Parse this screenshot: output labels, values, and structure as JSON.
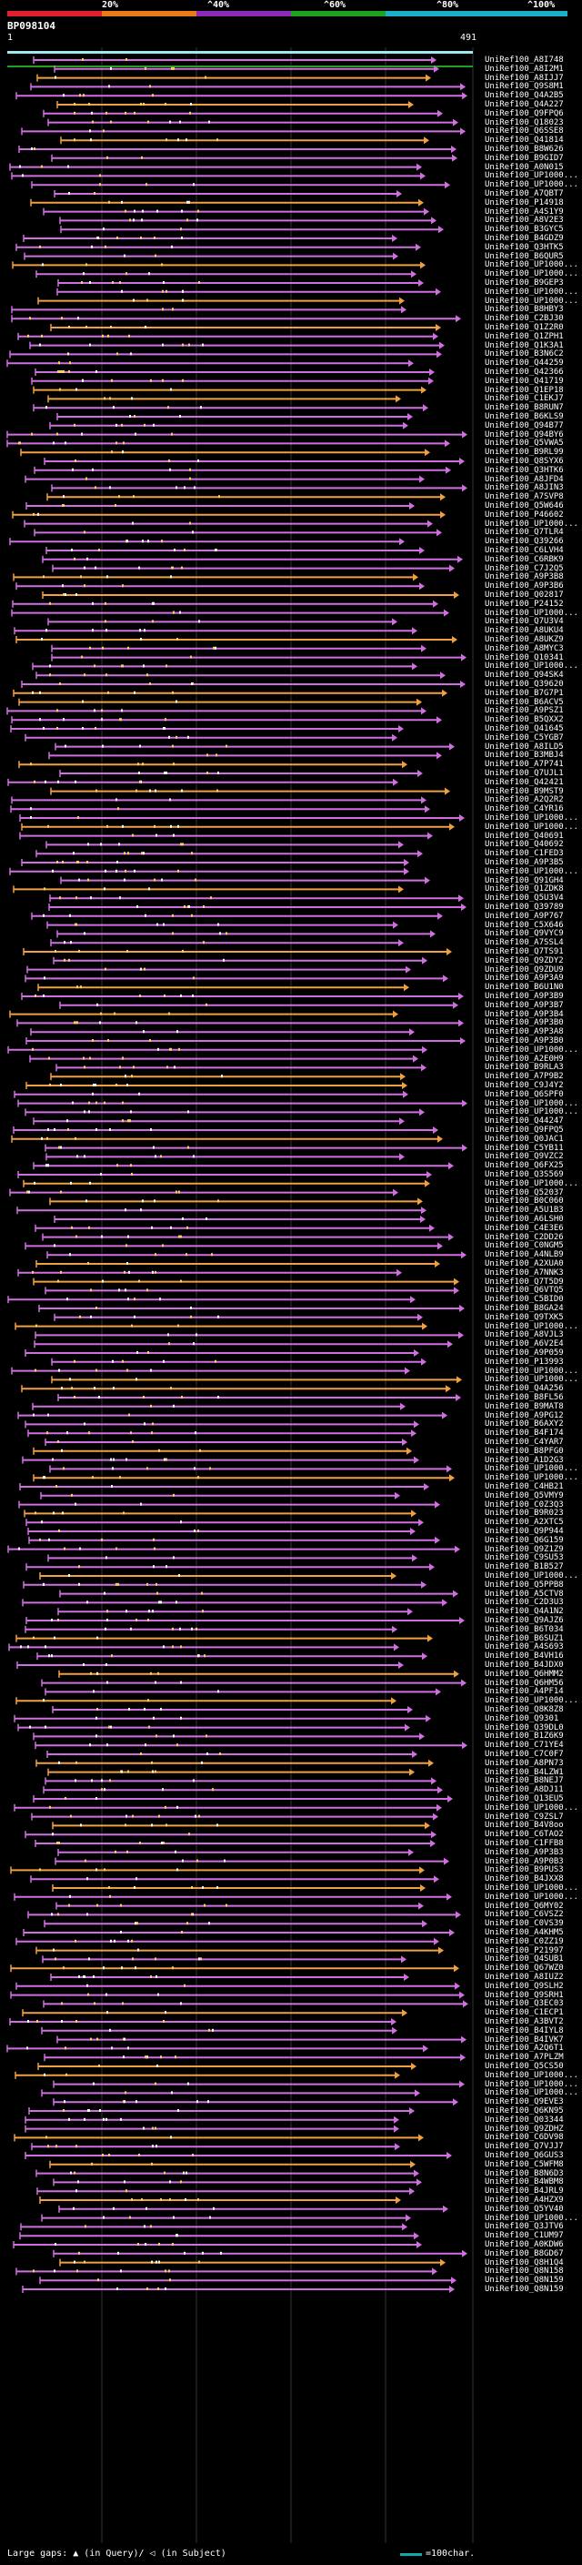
{
  "legend": {
    "ticks": [
      "20%",
      "^40%",
      "^60%",
      "^80%",
      "^100%"
    ],
    "colors": [
      "#e0202a",
      "#e87a1a",
      "#8a2bb8",
      "#22a020",
      "#1ab0c8"
    ]
  },
  "query": {
    "id": "BP098104",
    "start": "1",
    "end": "491"
  },
  "colors": {
    "orange": "#f0a040",
    "purple": "#d070e0",
    "query_bar": "#9ee8f0"
  },
  "hits": [
    "UniRef100_A8I748",
    "UniRef100_A8I2M1",
    "UniRef100_A8IJJ7",
    "UniRef100_Q9S8M1",
    "UniRef100_Q4A2B5",
    "UniRef100_Q4A227",
    "UniRef100_Q9FPQ6",
    "UniRef100_Q18023",
    "UniRef100_Q6SSE8",
    "UniRef100_Q41814",
    "UniRef100_B8W626",
    "UniRef100_B9GID7",
    "UniRef100_A0N015",
    "UniRef100_UP1000...",
    "UniRef100_UP1000...",
    "UniRef100_A7QBT7",
    "UniRef100_P14918",
    "UniRef100_A4S1Y9",
    "UniRef100_A8V2E3",
    "UniRef100_B3GYC5",
    "UniRef100_B4GDZ9",
    "UniRef100_Q3HTK5",
    "UniRef100_B6QUR5",
    "UniRef100_UP1000...",
    "UniRef100_UP1000...",
    "UniRef100_B9GEP3",
    "UniRef100_UP1000...",
    "UniRef100_UP1000...",
    "UniRef100_B8HBY3",
    "UniRef100_C2BJ30",
    "UniRef100_Q1Z2R0",
    "UniRef100_Q1ZPH1",
    "UniRef100_Q1K3A1",
    "UniRef100_B3N6C2",
    "UniRef100_Q44259",
    "UniRef100_Q42366",
    "UniRef100_Q41719",
    "UniRef100_Q1EP18",
    "UniRef100_C1EKJ7",
    "UniRef100_B8RUN7",
    "UniRef100_B6KLS9",
    "UniRef100_Q94B77",
    "UniRef100_Q94BY6",
    "UniRef100_Q5VWA5",
    "UniRef100_B9RL99",
    "UniRef100_Q8SYX6",
    "UniRef100_Q3HTK6",
    "UniRef100_A8JFD4",
    "UniRef100_A8JIN3",
    "UniRef100_A7SVP8",
    "UniRef100_Q5W646",
    "UniRef100_P46602",
    "UniRef100_UP1000...",
    "UniRef100_Q7TLR4",
    "UniRef100_Q39266",
    "UniRef100_C6LVH4",
    "UniRef100_C6RBK9",
    "UniRef100_C7J2Q5",
    "UniRef100_A9P3B8",
    "UniRef100_A9P3B6",
    "UniRef100_Q02817",
    "UniRef100_P24152",
    "UniRef100_UP1000...",
    "UniRef100_Q7U3V4",
    "UniRef100_A8UKU4",
    "UniRef100_A8UKZ9",
    "UniRef100_A8MYC3",
    "UniRef100_Q10341",
    "UniRef100_UP1000...",
    "UniRef100_Q94SK4",
    "UniRef100_Q39620",
    "UniRef100_B7G7P1",
    "UniRef100_B6ACV5",
    "UniRef100_A9PSZ1",
    "UniRef100_B5QXX2",
    "UniRef100_Q41645",
    "UniRef100_C5YGB7",
    "UniRef100_A8ILD5",
    "UniRef100_B3MBJ4",
    "UniRef100_A7P741",
    "UniRef100_Q7UJL1",
    "UniRef100_Q42421",
    "UniRef100_B9MST9",
    "UniRef100_A2Q2R2",
    "UniRef100_C4YR16",
    "UniRef100_UP1000...",
    "UniRef100_UP1000...",
    "UniRef100_Q40691",
    "UniRef100_Q40692",
    "UniRef100_C1FED3",
    "UniRef100_A9P3B5",
    "UniRef100_UP1000...",
    "UniRef100_Q91GH4",
    "UniRef100_Q1ZDK8",
    "UniRef100_Q5U3V4",
    "UniRef100_Q39789",
    "UniRef100_A9P767",
    "UniRef100_C5X646",
    "UniRef100_Q9VYC9",
    "UniRef100_A7SSL4",
    "UniRef100_Q7TS91",
    "UniRef100_Q9ZDY2",
    "UniRef100_Q9ZDU9",
    "UniRef100_A9P3A9",
    "UniRef100_B6U1N0",
    "UniRef100_A9P3B9",
    "UniRef100_A9P3B7",
    "UniRef100_A9P3B4",
    "UniRef100_A9P3B0",
    "UniRef100_A9P3A8",
    "UniRef100_A9P3B0",
    "UniRef100_UP1000...",
    "UniRef100_A2E0H9",
    "UniRef100_B9RLA3",
    "UniRef100_A7P9B2",
    "UniRef100_C9J4Y2",
    "UniRef100_Q6SPF0",
    "UniRef100_UP1000...",
    "UniRef100_UP1000...",
    "UniRef100_Q44247",
    "UniRef100_Q9FPQ5",
    "UniRef100_Q0JAC1",
    "UniRef100_C5YB11",
    "UniRef100_Q9VZC2",
    "UniRef100_Q6FX25",
    "UniRef100_Q3S569",
    "UniRef100_UP1000...",
    "UniRef100_Q52037",
    "UniRef100_B0C060",
    "UniRef100_A5U1B3",
    "UniRef100_A6LSH0",
    "UniRef100_C4E3E6",
    "UniRef100_C2DD26",
    "UniRef100_C0NGM5",
    "UniRef100_A4NLB9",
    "UniRef100_A2XUA0",
    "UniRef100_A7NNK3",
    "UniRef100_Q7T5D9",
    "UniRef100_Q6VTQ5",
    "UniRef100_C5BID0",
    "UniRef100_B8GA24",
    "UniRef100_Q9TXK5",
    "UniRef100_UP1000...",
    "UniRef100_A8VJL3",
    "UniRef100_A6V2E4",
    "UniRef100_A9P059",
    "UniRef100_P13993",
    "UniRef100_UP1000...",
    "UniRef100_UP1000...",
    "UniRef100_Q4A256",
    "UniRef100_B8FL56",
    "UniRef100_B9MAT8",
    "UniRef100_A9PG12",
    "UniRef100_B6AXY2",
    "UniRef100_B4F174",
    "UniRef100_C4YAR7",
    "UniRef100_B8PFG0",
    "UniRef100_A1D2G3",
    "UniRef100_UP1000...",
    "UniRef100_UP1000...",
    "UniRef100_C4HB21",
    "UniRef100_Q5VMY9",
    "UniRef100_C0Z3Q3",
    "UniRef100_B9R023",
    "UniRef100_A2XTC5",
    "UniRef100_Q9P944",
    "UniRef100_Q6G159",
    "UniRef100_Q9Z1Z9",
    "UniRef100_C9SU53",
    "UniRef100_B1B527",
    "UniRef100_UP1000...",
    "UniRef100_Q5PPB8",
    "UniRef100_A5CTV8",
    "UniRef100_C2D3U3",
    "UniRef100_Q4A1N2",
    "UniRef100_Q9AJZ6",
    "UniRef100_B6T034",
    "UniRef100_B6SUZ1",
    "UniRef100_A4S693",
    "UniRef100_B4VH16",
    "UniRef100_B4JDX0",
    "UniRef100_Q6HMM2",
    "UniRef100_Q6HM56",
    "UniRef100_A4PF14",
    "UniRef100_UP1000...",
    "UniRef100_Q8K8Z8",
    "UniRef100_Q9301",
    "UniRef100_Q39DL0",
    "UniRef100_B1Z6K9",
    "UniRef100_C71YE4",
    "UniRef100_C7C0F7",
    "UniRef100_A8PN73",
    "UniRef100_B4LZW1",
    "UniRef100_B8NEJ7",
    "UniRef100_A8DJ11",
    "UniRef100_Q13EU5",
    "UniRef100_UP1000...",
    "UniRef100_C9ZSL7",
    "UniRef100_B4V8oo",
    "UniRef100_C6TAO2",
    "UniRef100_C1FFB8",
    "UniRef100_A9P3B3",
    "UniRef100_A9P0B3",
    "UniRef100_B9PUS3",
    "UniRef100_B4JXX8",
    "UniRef100_UP1000...",
    "UniRef100_UP1000...",
    "UniRef100_Q6MY02",
    "UniRef100_C6VSZ2",
    "UniRef100_C0VS39",
    "UniRef100_A4KHM5",
    "UniRef100_C0ZZ19",
    "UniRef100_P21997",
    "UniRef100_Q4SUB1",
    "UniRef100_Q67WZ0",
    "UniRef100_A8IUZ2",
    "UniRef100_Q9SLH2",
    "UniRef100_Q9SRH1",
    "UniRef100_Q3EC03",
    "UniRef100_C1ECP1",
    "UniRef100_A3BVT2",
    "UniRef100_B4IYL8",
    "UniRef100_B4IVK7",
    "UniRef100_A2Q6T1",
    "UniRef100_A7PLZM",
    "UniRef100_Q5CS50",
    "UniRef100_UP1000...",
    "UniRef100_UP1000...",
    "UniRef100_UP1000...",
    "UniRef100_Q9EVE3",
    "UniRef100_Q6KN95",
    "UniRef100_Q03344",
    "UniRef100_Q9ZDHZ",
    "UniRef100_C6DV98",
    "UniRef100_Q7VJJ7",
    "UniRef100_Q6GUS3",
    "UniRef100_C5WFM8",
    "UniRef100_B8N6D3",
    "UniRef100_B4WBM8",
    "UniRef100_B4JRL9",
    "UniRef100_A4HZX9",
    "UniRef100_Q5YV40",
    "UniRef100_UP1000...",
    "UniRef100_Q3JTV6",
    "UniRef100_C1UM97",
    "UniRef100_A0KDW6",
    "UniRef100_B8GD67",
    "UniRef100_Q8H1Q4",
    "UniRef100_Q8N158",
    "UniRef100_Q8N159",
    "UniRef100_Q8N159"
  ],
  "footer": {
    "text": "Large gaps: ▲ (in Query)/ ◁ (in Subject)",
    "scale_label": "=100char."
  }
}
